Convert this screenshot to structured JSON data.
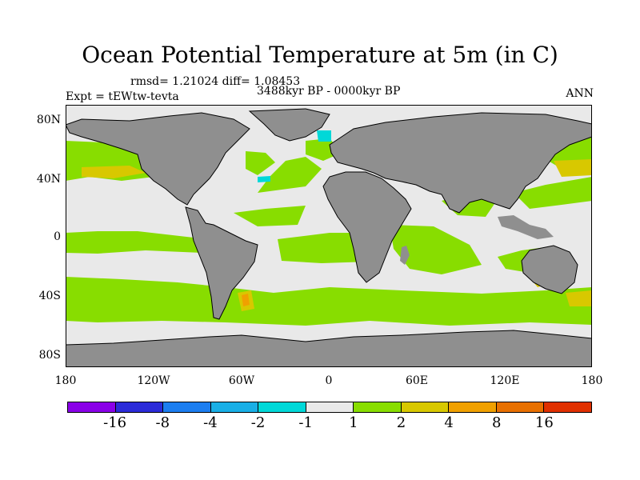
{
  "title": "Ocean Potential Temperature at 5m (in C)",
  "stats_text": "rmsd= 1.21024 diff= 1.08453",
  "experiment_text": "Expt = tEWtw-tevta",
  "period_text": "3488kyr BP - 0000kyr BP",
  "season_text": "ANN",
  "map": {
    "lat_ticks": [
      "80N",
      "40N",
      "0",
      "40S",
      "80S"
    ],
    "lon_ticks": [
      "180",
      "120W",
      "60W",
      "0",
      "60E",
      "120E",
      "180"
    ],
    "colors": {
      "land": "#8f8f8f",
      "ocean_neutral": "#e9e9e9",
      "warm_1_2": "#88dd00",
      "warm_2_4": "#d8c800",
      "warm_4_8": "#f0a000",
      "cool_minus2_minus1": "#00d8d8",
      "coast": "#000000"
    }
  },
  "colorbar": {
    "colors": [
      "#8a00e8",
      "#2b2bd8",
      "#1c7ef0",
      "#19afe6",
      "#00d8d8",
      "#e9e9e9",
      "#88dd00",
      "#d8c800",
      "#f0a000",
      "#e87000",
      "#e03000"
    ],
    "labels": [
      "-16",
      "-8",
      "-4",
      "-2",
      "-1",
      "1",
      "2",
      "4",
      "8",
      "16"
    ]
  }
}
